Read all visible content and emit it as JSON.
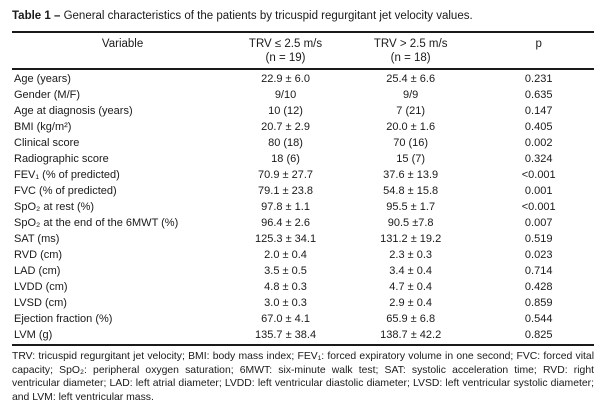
{
  "table": {
    "title_label": "Table 1 –",
    "title_text": "General characteristics of the patients by tricuspid regurgitant jet velocity values.",
    "columns": [
      "Variable",
      "TRV ≤ 2.5 m/s",
      "TRV > 2.5 m/s",
      "p"
    ],
    "subheaders": [
      "",
      "(n = 19)",
      "(n = 18)",
      ""
    ],
    "rows": [
      {
        "variable": "Age (years)",
        "trv_low": "22.9 ± 6.0",
        "trv_high": "25.4 ± 6.6",
        "p": "0.231"
      },
      {
        "variable": "Gender (M/F)",
        "trv_low": "9/10",
        "trv_high": "9/9",
        "p": "0.635"
      },
      {
        "variable": "Age at diagnosis (years)",
        "trv_low": "10 (12)",
        "trv_high": "7 (21)",
        "p": "0.147"
      },
      {
        "variable": "BMI (kg/m²)",
        "trv_low": "20.7 ± 2.9",
        "trv_high": "20.0 ± 1.6",
        "p": "0.405"
      },
      {
        "variable": "Clinical score",
        "trv_low": "80 (18)",
        "trv_high": "70 (16)",
        "p": "0.002"
      },
      {
        "variable": "Radiographic score",
        "trv_low": "18 (6)",
        "trv_high": "15 (7)",
        "p": "0.324"
      },
      {
        "variable": "FEV₁ (% of predicted)",
        "trv_low": "70.9 ± 27.7",
        "trv_high": "37.6 ± 13.9",
        "p": "<0.001"
      },
      {
        "variable": "FVC (% of predicted)",
        "trv_low": "79.1 ± 23.8",
        "trv_high": "54.8 ± 15.8",
        "p": "0.001"
      },
      {
        "variable": "SpO₂ at rest (%)",
        "trv_low": "97.8 ± 1.1",
        "trv_high": "95.5 ± 1.7",
        "p": "<0.001"
      },
      {
        "variable": "SpO₂ at the end of the 6MWT (%)",
        "trv_low": "96.4 ± 2.6",
        "trv_high": "90.5 ±7.8",
        "p": "0.007"
      },
      {
        "variable": "SAT (ms)",
        "trv_low": "125.3 ± 34.1",
        "trv_high": "131.2 ± 19.2",
        "p": "0.519"
      },
      {
        "variable": "RVD (cm)",
        "trv_low": "2.0 ± 0.4",
        "trv_high": "2.3 ± 0.3",
        "p": "0.023"
      },
      {
        "variable": "LAD (cm)",
        "trv_low": "3.5 ± 0.5",
        "trv_high": "3.4 ± 0.4",
        "p": "0.714"
      },
      {
        "variable": "LVDD (cm)",
        "trv_low": "4.8 ± 0.3",
        "trv_high": "4.7 ± 0.4",
        "p": "0.428"
      },
      {
        "variable": "LVSD (cm)",
        "trv_low": "3.0 ± 0.3",
        "trv_high": "2.9 ± 0.4",
        "p": "0.859"
      },
      {
        "variable": "Ejection fraction (%)",
        "trv_low": "67.0 ± 4.1",
        "trv_high": "65.9 ± 6.8",
        "p": "0.544"
      },
      {
        "variable": "LVM (g)",
        "trv_low": "135.7 ± 38.4",
        "trv_high": "138.7 ± 42.2",
        "p": "0.825"
      }
    ],
    "footnote": "TRV: tricuspid regurgitant jet velocity; BMI: body mass index; FEV₁: forced expiratory volume in one second; FVC: forced vital capacity; SpO₂: peripheral oxygen saturation; 6MWT: six-minute walk test; SAT: systolic acceleration time; RVD: right ventricular diameter; LAD: left atrial diameter; LVDD: left ventricular diastolic diameter; LVSD: left ventricular systolic diameter; and LVM: left ventricular mass."
  }
}
